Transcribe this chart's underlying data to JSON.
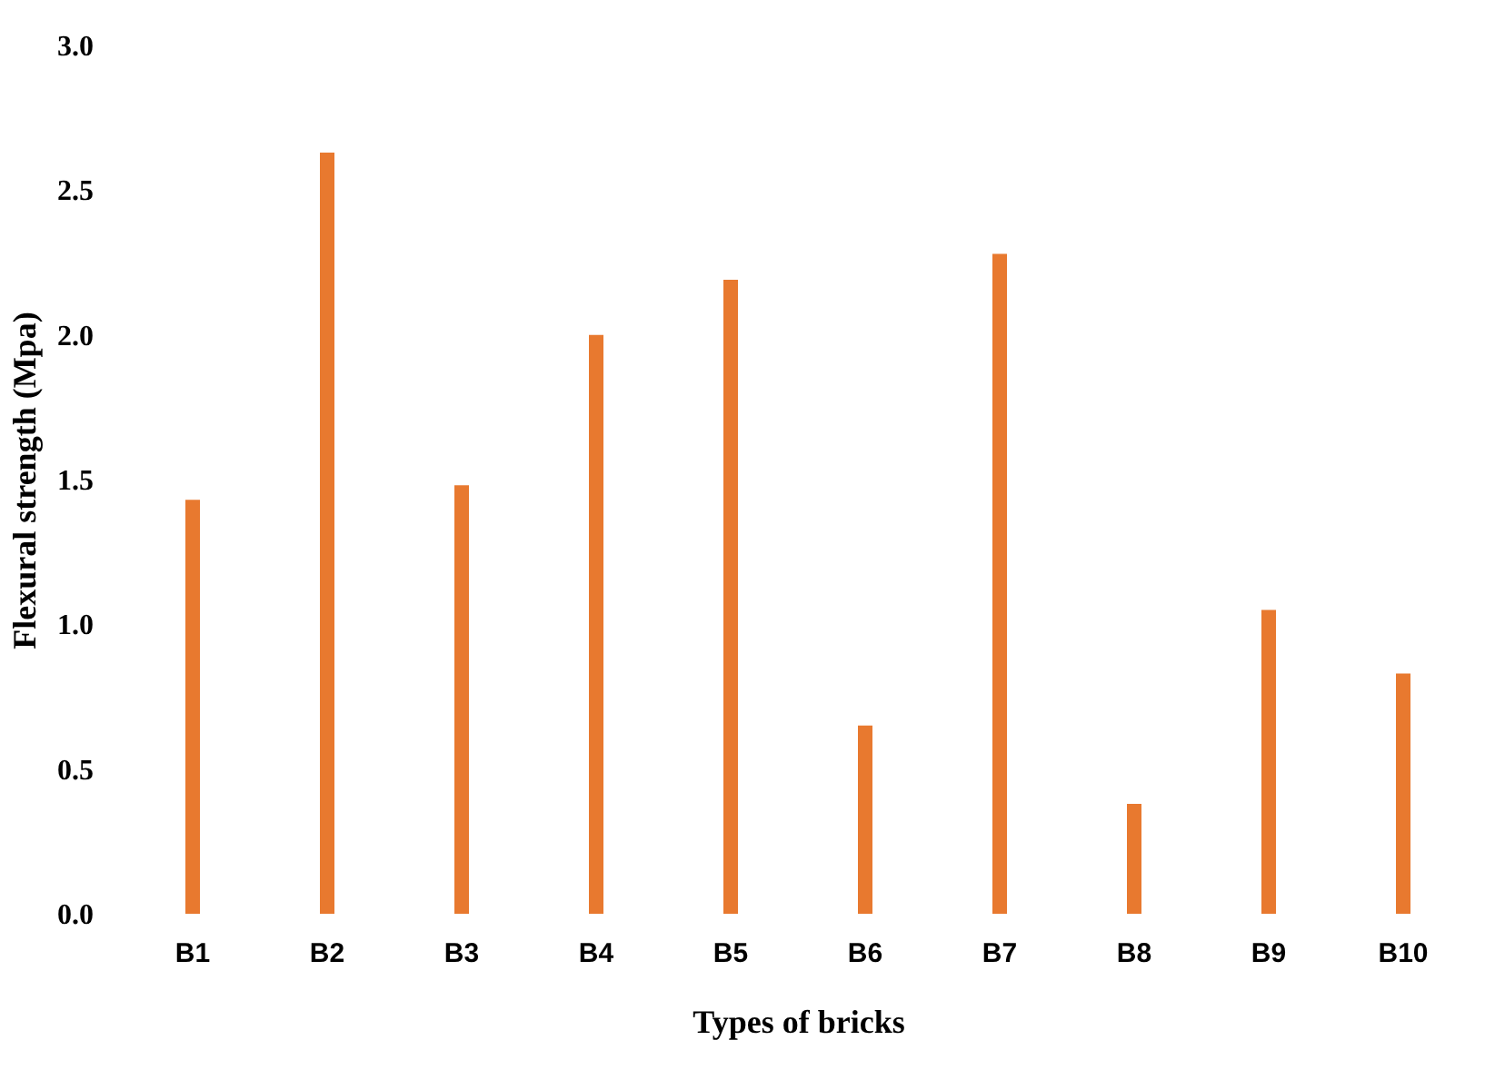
{
  "chart_data": {
    "type": "bar",
    "xlabel": "Types of bricks",
    "ylabel": "Flexural strength (Mpa)",
    "categories": [
      "B1",
      "B2",
      "B3",
      "B4",
      "B5",
      "B6",
      "B7",
      "B8",
      "B9",
      "B10"
    ],
    "values": [
      1.43,
      2.63,
      1.48,
      2.0,
      2.19,
      0.65,
      2.28,
      0.38,
      1.05,
      0.83
    ],
    "color": "#e8792f",
    "ylim": [
      0,
      3
    ],
    "yticks": [
      {
        "value": 0,
        "label": "0.0"
      },
      {
        "value": 0.5,
        "label": "0.5"
      },
      {
        "value": 1,
        "label": "1.0"
      },
      {
        "value": 1.5,
        "label": "1.5"
      },
      {
        "value": 2,
        "label": "2.0"
      },
      {
        "value": 2.5,
        "label": "2.5"
      },
      {
        "value": 3,
        "label": "3.0"
      }
    ],
    "grid": false
  }
}
